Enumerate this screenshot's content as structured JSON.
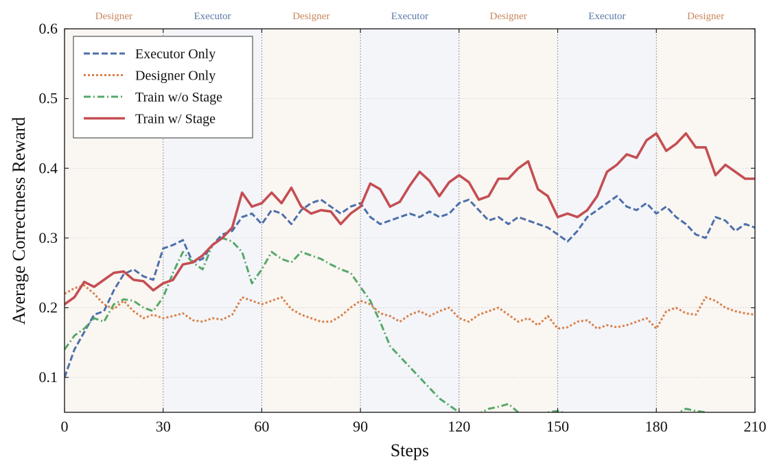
{
  "chart_data": {
    "type": "line",
    "title": "",
    "xlabel": "Steps",
    "ylabel": "Average Correctness Reward",
    "xlim": [
      0,
      210
    ],
    "ylim": [
      0.05,
      0.6
    ],
    "xticks": [
      0,
      30,
      60,
      90,
      120,
      150,
      180,
      210
    ],
    "yticks": [
      0.1,
      0.2,
      0.3,
      0.4,
      0.5,
      0.6
    ],
    "grid": true,
    "legend_position": "top-left",
    "stages": [
      {
        "label": "Designer",
        "start": 0,
        "end": 30,
        "color": "#c8865c",
        "fill": "#faf6f2"
      },
      {
        "label": "Executor",
        "start": 30,
        "end": 60,
        "color": "#5a78a8",
        "fill": "#f3f5f9"
      },
      {
        "label": "Designer",
        "start": 60,
        "end": 90,
        "color": "#c8865c",
        "fill": "#faf6f2"
      },
      {
        "label": "Executor",
        "start": 90,
        "end": 120,
        "color": "#5a78a8",
        "fill": "#f3f5f9"
      },
      {
        "label": "Designer",
        "start": 120,
        "end": 150,
        "color": "#c8865c",
        "fill": "#faf6f2"
      },
      {
        "label": "Executor",
        "start": 150,
        "end": 180,
        "color": "#5a78a8",
        "fill": "#f3f5f9"
      },
      {
        "label": "Designer",
        "start": 180,
        "end": 210,
        "color": "#c8865c",
        "fill": "#faf6f2"
      }
    ],
    "series": [
      {
        "name": "Executor Only",
        "color": "#4c6faa",
        "dash": "dashed",
        "x": [
          0,
          3,
          6,
          9,
          12,
          15,
          18,
          21,
          24,
          27,
          30,
          33,
          36,
          39,
          42,
          45,
          48,
          51,
          54,
          57,
          60,
          63,
          66,
          69,
          72,
          75,
          78,
          81,
          84,
          87,
          90,
          93,
          96,
          99,
          102,
          105,
          108,
          111,
          114,
          117,
          120,
          123,
          126,
          129,
          132,
          135,
          138,
          141,
          144,
          147,
          150,
          153,
          156,
          159,
          162,
          165,
          168,
          171,
          174,
          177,
          180,
          183,
          186,
          189,
          192,
          195,
          198,
          201,
          204,
          207,
          210
        ],
        "y": [
          0.1,
          0.14,
          0.165,
          0.19,
          0.195,
          0.225,
          0.248,
          0.255,
          0.245,
          0.24,
          0.285,
          0.29,
          0.297,
          0.265,
          0.27,
          0.29,
          0.305,
          0.31,
          0.33,
          0.335,
          0.32,
          0.34,
          0.335,
          0.32,
          0.34,
          0.35,
          0.355,
          0.345,
          0.335,
          0.345,
          0.35,
          0.33,
          0.32,
          0.325,
          0.33,
          0.335,
          0.33,
          0.338,
          0.33,
          0.335,
          0.35,
          0.355,
          0.34,
          0.325,
          0.33,
          0.32,
          0.33,
          0.325,
          0.32,
          0.315,
          0.305,
          0.295,
          0.31,
          0.33,
          0.34,
          0.35,
          0.36,
          0.345,
          0.34,
          0.35,
          0.335,
          0.345,
          0.33,
          0.32,
          0.305,
          0.3,
          0.33,
          0.325,
          0.31,
          0.32,
          0.315
        ]
      },
      {
        "name": "Designer Only",
        "color": "#d9804a",
        "dash": "dotted",
        "x": [
          0,
          3,
          6,
          9,
          12,
          15,
          18,
          21,
          24,
          27,
          30,
          33,
          36,
          39,
          42,
          45,
          48,
          51,
          54,
          57,
          60,
          63,
          66,
          69,
          72,
          75,
          78,
          81,
          84,
          87,
          90,
          93,
          96,
          99,
          102,
          105,
          108,
          111,
          114,
          117,
          120,
          123,
          126,
          129,
          132,
          135,
          138,
          141,
          144,
          147,
          150,
          153,
          156,
          159,
          162,
          165,
          168,
          171,
          174,
          177,
          180,
          183,
          186,
          189,
          192,
          195,
          198,
          201,
          204,
          207,
          210
        ],
        "y": [
          0.22,
          0.228,
          0.232,
          0.22,
          0.205,
          0.198,
          0.21,
          0.195,
          0.185,
          0.19,
          0.185,
          0.188,
          0.192,
          0.182,
          0.18,
          0.185,
          0.183,
          0.19,
          0.215,
          0.21,
          0.205,
          0.21,
          0.215,
          0.198,
          0.19,
          0.185,
          0.18,
          0.18,
          0.188,
          0.2,
          0.21,
          0.205,
          0.192,
          0.188,
          0.18,
          0.19,
          0.195,
          0.188,
          0.195,
          0.2,
          0.185,
          0.18,
          0.19,
          0.195,
          0.2,
          0.19,
          0.18,
          0.185,
          0.175,
          0.188,
          0.17,
          0.172,
          0.18,
          0.182,
          0.17,
          0.175,
          0.172,
          0.175,
          0.18,
          0.185,
          0.17,
          0.195,
          0.2,
          0.192,
          0.19,
          0.215,
          0.21,
          0.2,
          0.195,
          0.192,
          0.19
        ]
      },
      {
        "name": "Train w/o Stage",
        "color": "#55a868",
        "dash": "dashdot",
        "x": [
          0,
          3,
          6,
          9,
          12,
          15,
          18,
          21,
          24,
          27,
          30,
          33,
          36,
          39,
          42,
          45,
          48,
          51,
          54,
          57,
          60,
          63,
          66,
          69,
          72,
          75,
          78,
          81,
          84,
          87,
          90,
          93,
          96,
          99,
          102,
          105,
          108,
          111,
          114,
          117,
          120,
          123,
          126,
          129,
          132,
          135,
          138,
          141,
          144,
          147,
          150,
          153,
          156,
          159,
          162,
          165,
          168,
          171,
          174,
          177,
          180,
          183,
          186,
          189,
          192,
          195,
          198,
          201,
          204,
          207,
          210
        ],
        "y": [
          0.14,
          0.16,
          0.17,
          0.185,
          0.18,
          0.205,
          0.212,
          0.21,
          0.2,
          0.195,
          0.215,
          0.25,
          0.28,
          0.265,
          0.255,
          0.29,
          0.3,
          0.295,
          0.28,
          0.235,
          0.255,
          0.28,
          0.27,
          0.265,
          0.28,
          0.275,
          0.27,
          0.262,
          0.255,
          0.25,
          0.23,
          0.21,
          0.18,
          0.145,
          0.13,
          0.115,
          0.1,
          0.085,
          0.07,
          0.06,
          0.05,
          0.045,
          0.048,
          0.055,
          0.058,
          0.062,
          0.05,
          0.048,
          0.045,
          0.05,
          0.052,
          0.048,
          0.045,
          0.042,
          0.044,
          0.04,
          0.042,
          0.045,
          0.044,
          0.04,
          0.042,
          0.04,
          0.048,
          0.055,
          0.052,
          0.05,
          0.045,
          0.042,
          0.04,
          0.042,
          0.04
        ]
      },
      {
        "name": "Train w/ Stage",
        "color": "#c44e52",
        "dash": "solid",
        "x": [
          0,
          3,
          6,
          9,
          12,
          15,
          18,
          21,
          24,
          27,
          30,
          33,
          36,
          39,
          42,
          45,
          48,
          51,
          54,
          57,
          60,
          63,
          66,
          69,
          72,
          75,
          78,
          81,
          84,
          87,
          90,
          93,
          96,
          99,
          102,
          105,
          108,
          111,
          114,
          117,
          120,
          123,
          126,
          129,
          132,
          135,
          138,
          141,
          144,
          147,
          150,
          153,
          156,
          159,
          162,
          165,
          168,
          171,
          174,
          177,
          180,
          183,
          186,
          189,
          192,
          195,
          198,
          201,
          204,
          207,
          210
        ],
        "y": [
          0.205,
          0.215,
          0.237,
          0.23,
          0.24,
          0.25,
          0.252,
          0.24,
          0.238,
          0.225,
          0.235,
          0.24,
          0.262,
          0.265,
          0.275,
          0.29,
          0.3,
          0.315,
          0.365,
          0.345,
          0.35,
          0.365,
          0.35,
          0.372,
          0.345,
          0.335,
          0.34,
          0.338,
          0.32,
          0.335,
          0.345,
          0.378,
          0.37,
          0.345,
          0.352,
          0.375,
          0.395,
          0.382,
          0.36,
          0.38,
          0.39,
          0.38,
          0.355,
          0.36,
          0.385,
          0.385,
          0.4,
          0.41,
          0.37,
          0.36,
          0.33,
          0.335,
          0.33,
          0.34,
          0.36,
          0.395,
          0.405,
          0.42,
          0.415,
          0.44,
          0.45,
          0.425,
          0.435,
          0.45,
          0.43,
          0.43,
          0.39,
          0.405,
          0.395,
          0.385,
          0.385
        ]
      }
    ]
  }
}
